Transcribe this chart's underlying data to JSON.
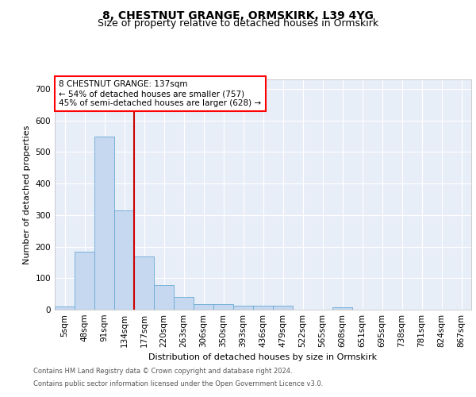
{
  "title_line1": "8, CHESTNUT GRANGE, ORMSKIRK, L39 4YG",
  "title_line2": "Size of property relative to detached houses in Ormskirk",
  "xlabel": "Distribution of detached houses by size in Ormskirk",
  "ylabel": "Number of detached properties",
  "footer_line1": "Contains HM Land Registry data © Crown copyright and database right 2024.",
  "footer_line2": "Contains public sector information licensed under the Open Government Licence v3.0.",
  "bar_labels": [
    "5sqm",
    "48sqm",
    "91sqm",
    "134sqm",
    "177sqm",
    "220sqm",
    "263sqm",
    "306sqm",
    "350sqm",
    "393sqm",
    "436sqm",
    "479sqm",
    "522sqm",
    "565sqm",
    "608sqm",
    "651sqm",
    "695sqm",
    "738sqm",
    "781sqm",
    "824sqm",
    "867sqm"
  ],
  "bar_values": [
    10,
    185,
    550,
    315,
    168,
    77,
    40,
    18,
    18,
    12,
    12,
    12,
    0,
    0,
    8,
    0,
    0,
    0,
    0,
    0,
    0
  ],
  "bar_color": "#c5d8f0",
  "bar_edge_color": "#6aaad4",
  "vline_color": "#cc0000",
  "annotation_text": "8 CHESTNUT GRANGE: 137sqm\n← 54% of detached houses are smaller (757)\n45% of semi-detached houses are larger (628) →",
  "ylim": [
    0,
    730
  ],
  "yticks": [
    0,
    100,
    200,
    300,
    400,
    500,
    600,
    700
  ],
  "bg_color": "#e8eef8",
  "grid_color": "#ffffff",
  "title_fontsize": 10,
  "subtitle_fontsize": 9,
  "axis_label_fontsize": 8,
  "tick_fontsize": 7.5,
  "annotation_fontsize": 7.5,
  "footer_fontsize": 6
}
